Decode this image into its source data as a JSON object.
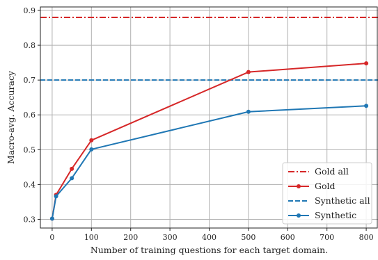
{
  "chart_data": {
    "type": "line",
    "title": "",
    "xlabel": "Number of training questions for each target domain.",
    "ylabel": "Macro-avg. Accuracy",
    "xlim": [
      -30,
      830
    ],
    "ylim": [
      0.275,
      0.91
    ],
    "xticks": [
      0,
      100,
      200,
      300,
      400,
      500,
      600,
      700,
      800
    ],
    "yticks": [
      0.3,
      0.4,
      0.5,
      0.6,
      0.7,
      0.8,
      0.9
    ],
    "xtick_labels": [
      "0",
      "100",
      "200",
      "300",
      "400",
      "500",
      "600",
      "700",
      "800"
    ],
    "ytick_labels": [
      "0.3",
      "0.4",
      "0.5",
      "0.6",
      "0.7",
      "0.8",
      "0.9"
    ],
    "grid": true,
    "legend_position": "lower-right",
    "horizontal_lines": [
      {
        "name": "Gold all",
        "value": 0.88,
        "color": "#d62728",
        "style": "dashdot"
      },
      {
        "name": "Synthetic all",
        "value": 0.7,
        "color": "#1f77b4",
        "style": "dashed"
      }
    ],
    "series": [
      {
        "name": "Gold",
        "color": "#d62728",
        "x": [
          0,
          10,
          50,
          100,
          500,
          800
        ],
        "values": [
          0.302,
          0.37,
          0.445,
          0.527,
          0.723,
          0.748
        ]
      },
      {
        "name": "Synthetic",
        "color": "#1f77b4",
        "x": [
          0,
          10,
          50,
          100,
          500,
          800
        ],
        "values": [
          0.302,
          0.366,
          0.418,
          0.501,
          0.609,
          0.626
        ]
      }
    ],
    "legend": [
      "Gold all",
      "Gold",
      "Synthetic all",
      "Synthetic"
    ]
  }
}
